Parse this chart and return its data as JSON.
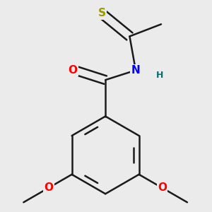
{
  "bg_color": "#ebebeb",
  "bond_color": "#1a1a1a",
  "bond_width": 1.8,
  "atom_colors": {
    "O": "#ff0000",
    "N": "#0000ff",
    "S": "#999900",
    "H": "#007070",
    "C": "#1a1a1a"
  },
  "font_size_atom": 11,
  "font_size_h": 9,
  "figsize": [
    3.0,
    3.0
  ],
  "dpi": 100
}
